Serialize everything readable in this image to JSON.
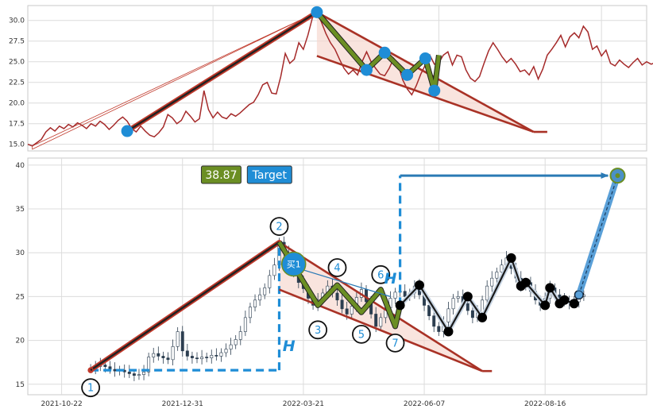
{
  "chart_data": [
    {
      "type": "line",
      "title": "",
      "xlabel": "",
      "ylabel": "",
      "ylim": [
        14.2,
        31.8
      ],
      "yticks": [
        15.0,
        17.5,
        20.0,
        22.5,
        25.0,
        27.5,
        30.0
      ],
      "ytick_labels": [
        "15.0",
        "17.5",
        "20.0",
        "22.5",
        "25.0",
        "27.5",
        "30.0"
      ],
      "grid": true,
      "colors": {
        "price": "#a52a2a",
        "impulse": "#222222",
        "impulse_outline": "#c0392b",
        "wedge": "#a93226",
        "zigzag": "#6b8e23",
        "pivot_dot": "#1f8dd6"
      },
      "series": [
        {
          "values": [
            15.0,
            14.8,
            15.2,
            15.6,
            16.5,
            17.0,
            16.6,
            17.2,
            16.9,
            17.4,
            17.1,
            17.6,
            17.3,
            16.9,
            17.5,
            17.2,
            17.8,
            17.4,
            16.8,
            17.3,
            17.9,
            18.3,
            17.8,
            16.9,
            16.5,
            17.2,
            16.6,
            16.1,
            15.9,
            16.4,
            17.1,
            18.6,
            18.2,
            17.5,
            17.9,
            19.0,
            18.4,
            17.7,
            18.1,
            21.5,
            19.2,
            18.2,
            18.9,
            18.3,
            18.1,
            18.7,
            18.4,
            18.8,
            19.3,
            19.8,
            20.1,
            21.0,
            22.2,
            22.5,
            21.2,
            21.1,
            23.2,
            26.0,
            24.8,
            25.3,
            27.3,
            26.5,
            28.2,
            30.3,
            31.0,
            29.8,
            28.4,
            27.3,
            26.5,
            25.3,
            24.2,
            23.5,
            24.0,
            23.4,
            25.0,
            26.2,
            25.0,
            24.2,
            23.5,
            23.3,
            24.2,
            25.4,
            24.6,
            22.8,
            21.7,
            21.0,
            22.1,
            23.5,
            24.6,
            25.8,
            24.7,
            24.9,
            25.8,
            26.2,
            24.6,
            25.8,
            25.6,
            24.0,
            23.0,
            22.6,
            23.2,
            24.8,
            26.3,
            27.3,
            26.5,
            25.6,
            24.9,
            25.4,
            24.7,
            23.8,
            24.0,
            23.4,
            24.4,
            22.9,
            24.1,
            25.8,
            26.5,
            27.3,
            28.2,
            26.8,
            28.0,
            28.5,
            27.9,
            29.3,
            28.6,
            26.5,
            26.9,
            25.7,
            26.4,
            24.8,
            24.5,
            25.2,
            24.7,
            24.3,
            24.9,
            25.4,
            24.6,
            25.0,
            24.7,
            24.9,
            24.2,
            25.4,
            24.8,
            25.1
          ]
        }
      ],
      "annotations": {
        "impulse": [
          [
            1,
            14.8
          ],
          [
            64,
            31.0
          ]
        ],
        "pivots": [
          [
            22,
            16.6
          ],
          [
            64,
            31.0
          ],
          [
            75,
            24.0
          ],
          [
            79,
            26.1
          ],
          [
            84,
            23.4
          ],
          [
            88,
            25.4
          ],
          [
            90,
            21.5
          ]
        ],
        "zigzag": [
          [
            64,
            31.0
          ],
          [
            75,
            24.0
          ],
          [
            79,
            26.1
          ],
          [
            84,
            23.4
          ],
          [
            88,
            25.4
          ],
          [
            90,
            21.5
          ],
          [
            91,
            25.8
          ]
        ],
        "upper_line": [
          [
            64,
            31.0
          ],
          [
            112,
            16.5
          ]
        ],
        "lower_line": [
          [
            64,
            25.7
          ],
          [
            112,
            16.5
          ]
        ],
        "bar_ext": [
          [
            112,
            16.5
          ],
          [
            115,
            16.5
          ]
        ]
      }
    },
    {
      "type": "candlestick",
      "title": "",
      "xlabel": "",
      "ylabel": "",
      "ylim": [
        13.8,
        40.8
      ],
      "yticks": [
        15,
        20,
        25,
        30,
        35,
        40
      ],
      "ytick_labels": [
        "15",
        "20",
        "25",
        "30",
        "35",
        "40"
      ],
      "xtick_labels": [
        "2021-10-22",
        "2021-12-31",
        "2022-03-21",
        "2022-06-07",
        "2022-08-16"
      ],
      "grid": true,
      "colors": {
        "candle": "#2c3e50",
        "impulse_outline": "#c0392b",
        "impulse": "#222222",
        "wedge": "#a93226",
        "zigzag": "#6b8e23",
        "dashed": "#1f8dd6",
        "target_line": "#2a7ab5",
        "swing_line": "#1a1a1a",
        "value_box": "#6b8e23",
        "target_box": "#1f8dd6"
      },
      "series": [
        {
          "name": "close",
          "values": [
            16.8,
            17.0,
            17.2,
            17.0,
            16.7,
            16.5,
            16.6,
            16.4,
            16.2,
            16.0,
            16.1,
            16.4,
            18.1,
            18.5,
            18.2,
            18.0,
            17.8,
            19.3,
            21.0,
            18.8,
            18.2,
            18.0,
            17.9,
            18.1,
            18.0,
            18.3,
            18.2,
            18.6,
            19.0,
            19.5,
            20.1,
            21.0,
            22.6,
            23.8,
            24.6,
            25.2,
            26.0,
            27.4,
            28.6,
            31.2,
            30.0,
            29.0,
            27.7,
            26.6,
            25.9,
            24.8,
            24.0,
            24.6,
            25.4,
            26.2,
            25.4,
            24.6,
            23.6,
            23.0,
            23.9,
            24.9,
            25.8,
            24.4,
            23.0,
            21.6,
            22.6,
            23.7,
            24.8,
            25.5,
            25.6,
            25.0,
            25.4,
            26.2,
            25.2,
            24.0,
            22.8,
            21.6,
            21.0,
            22.1,
            23.6,
            24.8,
            25.0,
            24.2,
            23.4,
            22.6,
            23.2,
            24.6,
            26.2,
            27.1,
            27.8,
            28.6,
            29.4,
            28.2,
            27.1,
            26.2,
            26.6,
            25.6,
            24.6,
            24.0,
            24.8,
            26.0,
            25.2,
            24.4,
            24.6,
            24.2,
            24.4,
            25.0,
            25.2
          ]
        }
      ],
      "annotations": {
        "impulse": [
          [
            0,
            16.6
          ],
          [
            39,
            31.2
          ]
        ],
        "wedge_upper": [
          [
            39,
            31.2
          ],
          [
            81,
            16.5
          ]
        ],
        "wedge_lower": [
          [
            39,
            25.8
          ],
          [
            81,
            16.5
          ]
        ],
        "wedge_tail": [
          [
            81,
            16.5
          ],
          [
            83,
            16.5
          ]
        ],
        "zigzag": [
          [
            39,
            31.2
          ],
          [
            47,
            24.0
          ],
          [
            51,
            26.3
          ],
          [
            56,
            23.2
          ],
          [
            60,
            25.8
          ],
          [
            63,
            21.6
          ],
          [
            64,
            24.0
          ]
        ],
        "wave_labels": [
          {
            "text": "1",
            "x": 0,
            "y": 14.6
          },
          {
            "text": "2",
            "x": 39,
            "y": 33.0
          },
          {
            "text": "3",
            "x": 47,
            "y": 21.2
          },
          {
            "text": "4",
            "x": 51,
            "y": 28.3
          },
          {
            "text": "5",
            "x": 56,
            "y": 20.7
          },
          {
            "text": "6",
            "x": 60,
            "y": 27.5
          },
          {
            "text": "7",
            "x": 63,
            "y": 19.7
          }
        ],
        "signal": {
          "text": "买1",
          "x": 42,
          "y": 28.7
        },
        "dashed_h": [
          [
            0,
            16.6
          ],
          [
            39,
            16.6
          ]
        ],
        "dashed_v1": [
          [
            39,
            16.6
          ],
          [
            39,
            31.2
          ]
        ],
        "dashed_v2": [
          [
            64,
            24.0
          ],
          [
            64,
            38.8
          ]
        ],
        "h_labels": [
          {
            "text": "H",
            "x": 41,
            "y": 18.8
          },
          {
            "text": "H",
            "x": 62,
            "y": 26.5
          }
        ],
        "swing_points": [
          [
            64,
            24.0
          ],
          [
            68,
            26.3
          ],
          [
            74,
            21.0
          ],
          [
            78,
            25.0
          ],
          [
            81,
            22.6
          ],
          [
            87,
            29.4
          ],
          [
            89,
            26.2
          ],
          [
            90,
            26.6
          ],
          [
            94,
            24.0
          ],
          [
            95,
            26.0
          ],
          [
            97,
            24.2
          ],
          [
            98,
            24.6
          ],
          [
            100,
            24.2
          ],
          [
            101,
            25.2
          ]
        ],
        "target_line": [
          [
            64,
            38.8
          ],
          [
            107,
            38.8
          ]
        ],
        "target_arrow": [
          [
            101,
            25.2
          ],
          [
            109,
            38.8
          ]
        ],
        "target_point": [
          109,
          38.8
        ],
        "value_box": {
          "text": "38.87",
          "x": 27,
          "y": 38.9
        },
        "target_box": {
          "text": "Target",
          "x": 37,
          "y": 38.9
        }
      }
    }
  ]
}
